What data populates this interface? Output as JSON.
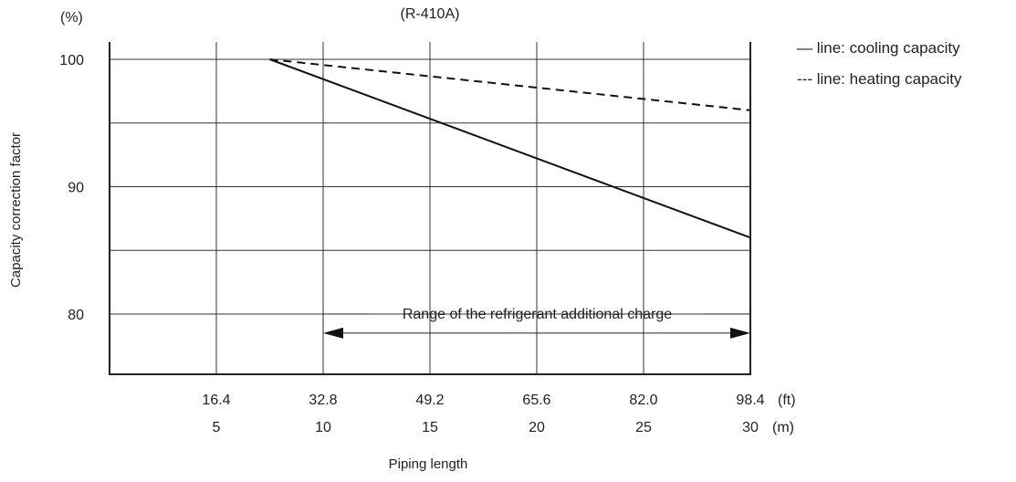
{
  "chart_data": {
    "type": "line",
    "title": "(R-410A)",
    "ylabel": "Capacity correction factor",
    "y_unit": "(%)",
    "xlabel": "Piping length",
    "x_unit_ft": "(ft)",
    "x_unit_m": "(m)",
    "xlim_m": [
      0,
      30
    ],
    "ylim": [
      75,
      102
    ],
    "grid": true,
    "y_ticks": [
      80,
      85,
      90,
      95,
      100
    ],
    "y_tick_labels": [
      "80",
      "",
      "90",
      "",
      "100"
    ],
    "x_ticks_m": [
      5,
      10,
      15,
      20,
      25,
      30
    ],
    "x_tick_labels_ft": [
      "16.4",
      "32.8",
      "49.2",
      "65.6",
      "82.0",
      "98.4"
    ],
    "x_tick_labels_m": [
      "5",
      "10",
      "15",
      "20",
      "25",
      "30"
    ],
    "series": [
      {
        "name": "cooling capacity",
        "style": "solid",
        "x": [
          7.5,
          30
        ],
        "y": [
          100,
          86
        ]
      },
      {
        "name": "heating capacity",
        "style": "dashed",
        "x": [
          7.5,
          30
        ],
        "y": [
          100,
          96
        ]
      }
    ],
    "legend": [
      "— line: cooling capacity",
      "--- line: heating capacity"
    ],
    "legend_position": "top-right",
    "annotation": {
      "text": "Range of the refrigerant additional charge",
      "x_start_m": 10,
      "x_end_m": 30,
      "y": 78.5
    }
  }
}
